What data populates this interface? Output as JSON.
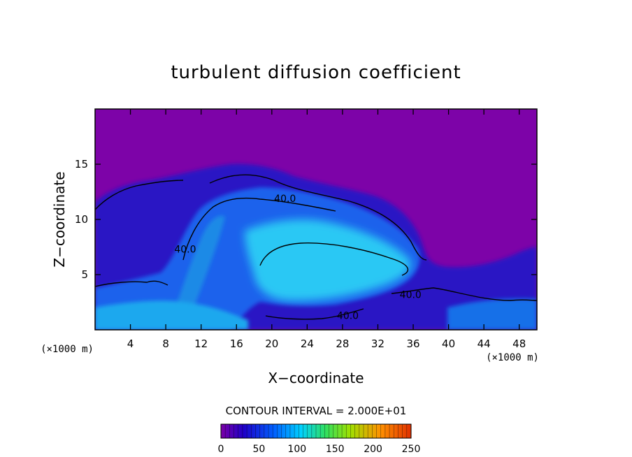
{
  "chart_data": {
    "type": "heatmap",
    "title": "turbulent diffusion coefficient",
    "xlabel": "X−coordinate",
    "ylabel": "Z−coordinate",
    "x_unit_left": "(×1000 m)",
    "x_unit_right": "(×1000 m)",
    "xlim": [
      0,
      50
    ],
    "ylim": [
      0,
      20
    ],
    "x_ticks": [
      4,
      8,
      12,
      16,
      20,
      24,
      28,
      32,
      36,
      40,
      44,
      48
    ],
    "y_ticks": [
      5,
      10,
      15
    ],
    "contour_interval_text": "CONTOUR INTERVAL = 2.000E+01",
    "contour_labels": [
      {
        "text": "40.0",
        "x": 21.5,
        "y": 11.9
      },
      {
        "text": "40.0",
        "x": 10.2,
        "y": 7.3
      },
      {
        "text": "40.0",
        "x": 35.7,
        "y": 3.2
      },
      {
        "text": "40.0",
        "x": 28.6,
        "y": 1.3
      }
    ],
    "colorbar": {
      "min": 0,
      "max": 250,
      "tick_values": [
        0,
        50,
        100,
        150,
        200,
        250
      ],
      "tick_labels": [
        "0",
        "50",
        "100",
        "150",
        "200",
        "250"
      ],
      "colors": [
        "#7b00a6",
        "#1e00c8",
        "#0060ff",
        "#00d0ff",
        "#30e060",
        "#a0e000",
        "#ff9000",
        "#e03000"
      ]
    },
    "colors": {
      "background_field": "#7d03a8",
      "low": "#2c10c8",
      "mid": "#1a6cf0",
      "high": "#20d0f0",
      "contour": "#000000"
    }
  }
}
